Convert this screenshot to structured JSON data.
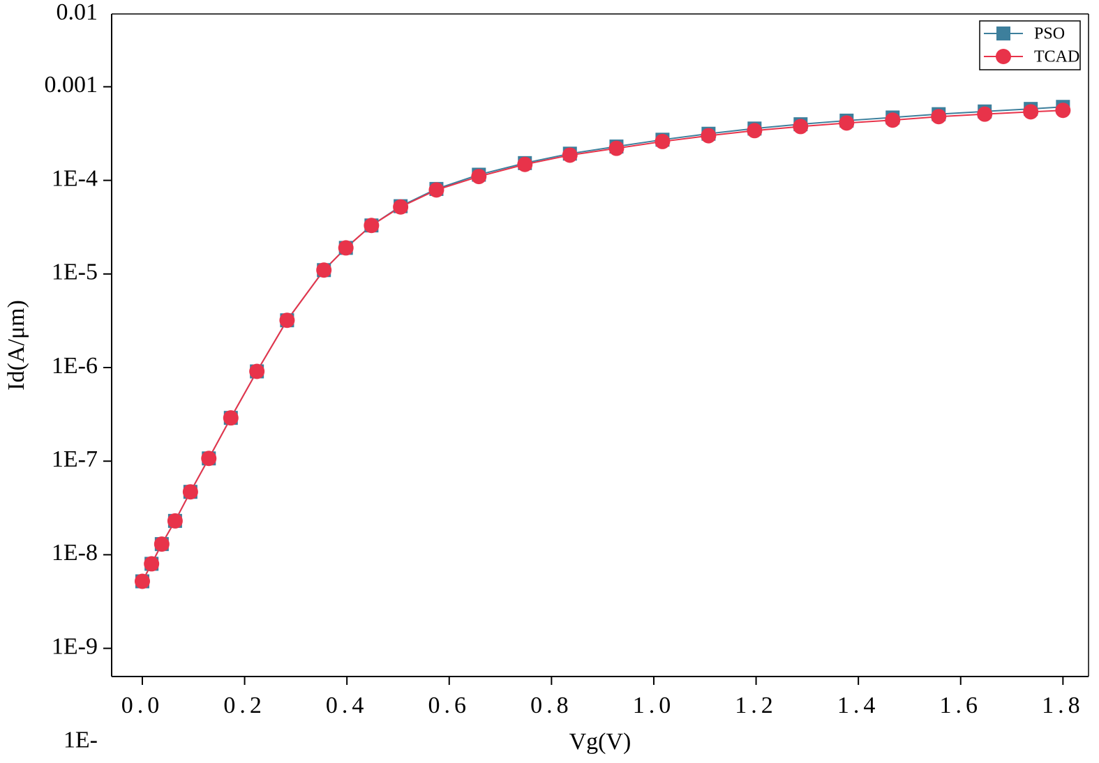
{
  "chart_data": {
    "type": "line",
    "x_label": "Vg(V)",
    "y_label": "Id(A/μm)",
    "log_y": true,
    "legend": "top-right",
    "xlim": [
      -0.06,
      1.85
    ],
    "ylim": [
      5e-10,
      0.006
    ],
    "xticks": [
      {
        "value": 0,
        "label": "0.0"
      },
      0.2,
      0.4,
      0.6,
      0.8,
      {
        "value": 1,
        "label": "1.0"
      },
      1.2,
      1.4,
      1.6,
      1.8
    ],
    "yticks": [
      0.01,
      0.001,
      {
        "value": 0.0001,
        "label": "1E-4"
      },
      {
        "value": 1e-05,
        "label": "1E-5"
      },
      {
        "value": 1e-06,
        "label": "1E-6"
      },
      {
        "value": 1e-07,
        "label": "1E-7"
      },
      {
        "value": 1e-08,
        "label": "1E-8"
      },
      {
        "value": 1e-09,
        "label": "1E-9"
      },
      {
        "value": 1e-10,
        "label": "1E-"
      }
    ],
    "x": [
      0,
      0.018,
      0.038,
      0.064,
      0.094,
      0.13,
      0.173,
      0.224,
      0.283,
      0.355,
      0.398,
      0.448,
      0.505,
      0.575,
      0.658,
      0.748,
      0.836,
      0.927,
      1.017,
      1.107,
      1.197,
      1.287,
      1.377,
      1.467,
      1.557,
      1.647,
      1.737,
      1.8
    ],
    "series": [
      {
        "name": "PSO",
        "color": "#3d7f9c",
        "marker": "square",
        "values": [
          5.2e-09,
          8e-09,
          1.3e-08,
          2.3e-08,
          4.7e-08,
          1.07e-07,
          2.9e-07,
          9.1e-07,
          3.2e-06,
          1.1e-05,
          1.9e-05,
          3.3e-05,
          5.3e-05,
          8.1e-05,
          0.000115,
          0.000153,
          0.000193,
          0.00023,
          0.000272,
          0.000315,
          0.000358,
          0.000398,
          0.000435,
          0.00047,
          0.00051,
          0.000545,
          0.00058,
          0.00061
        ]
      },
      {
        "name": "TCAD",
        "color": "#e8334a",
        "marker": "circle",
        "values": [
          5.2e-09,
          8e-09,
          1.3e-08,
          2.3e-08,
          4.7e-08,
          1.07e-07,
          2.9e-07,
          9.1e-07,
          3.2e-06,
          1.1e-05,
          1.9e-05,
          3.3e-05,
          5.2e-05,
          7.9e-05,
          0.00011,
          0.000148,
          0.000186,
          0.00022,
          0.00026,
          0.0003,
          0.00034,
          0.000376,
          0.00041,
          0.00044,
          0.00048,
          0.00051,
          0.00054,
          0.00056
        ]
      }
    ]
  }
}
